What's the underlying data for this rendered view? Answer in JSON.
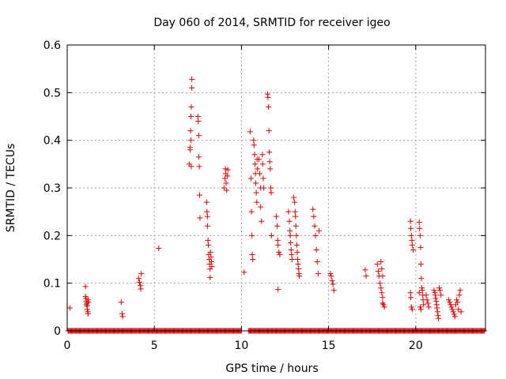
{
  "chart_data": {
    "type": "scatter",
    "title": "Day 060 of 2014, SRMTID for receiver igeo",
    "xlabel": "GPS time / hours",
    "ylabel": "SRMTID / TECUs",
    "xlim": [
      0,
      24
    ],
    "ylim": [
      0,
      0.6
    ],
    "grid": true,
    "legend": "none",
    "marker": "+",
    "color": "#dd0000",
    "xticks": [
      {
        "v": 0,
        "label": "0"
      },
      {
        "v": 5,
        "label": "5"
      },
      {
        "v": 10,
        "label": "10"
      },
      {
        "v": 15,
        "label": "15"
      },
      {
        "v": 20,
        "label": "20"
      }
    ],
    "yticks": [
      {
        "v": 0,
        "label": "0"
      },
      {
        "v": 0.1,
        "label": "0.1"
      },
      {
        "v": 0.2,
        "label": "0.2"
      },
      {
        "v": 0.3,
        "label": "0.3"
      },
      {
        "v": 0.4,
        "label": "0.4"
      },
      {
        "v": 0.5,
        "label": "0.5"
      },
      {
        "v": 0.6,
        "label": "0.6"
      }
    ],
    "points": [
      [
        0.15,
        0.048
      ],
      [
        1.05,
        0.093
      ],
      [
        1.05,
        0.072
      ],
      [
        1.08,
        0.068
      ],
      [
        1.1,
        0.062
      ],
      [
        1.12,
        0.058
      ],
      [
        1.15,
        0.052
      ],
      [
        1.15,
        0.045
      ],
      [
        1.18,
        0.04
      ],
      [
        1.2,
        0.036
      ],
      [
        1.1,
        0.055
      ],
      [
        1.2,
        0.065
      ],
      [
        1.22,
        0.06
      ],
      [
        3.1,
        0.06
      ],
      [
        3.15,
        0.036
      ],
      [
        3.18,
        0.03
      ],
      [
        4.1,
        0.11
      ],
      [
        4.15,
        0.102
      ],
      [
        4.2,
        0.095
      ],
      [
        4.22,
        0.088
      ],
      [
        4.25,
        0.12
      ],
      [
        5.25,
        0.173
      ],
      [
        7.0,
        0.35
      ],
      [
        7.05,
        0.38
      ],
      [
        7.08,
        0.42
      ],
      [
        7.1,
        0.45
      ],
      [
        7.12,
        0.47
      ],
      [
        7.15,
        0.51
      ],
      [
        7.15,
        0.528
      ],
      [
        7.1,
        0.4
      ],
      [
        7.12,
        0.345
      ],
      [
        7.05,
        0.385
      ],
      [
        7.5,
        0.45
      ],
      [
        7.52,
        0.44
      ],
      [
        7.55,
        0.41
      ],
      [
        7.55,
        0.365
      ],
      [
        7.58,
        0.345
      ],
      [
        7.6,
        0.285
      ],
      [
        7.62,
        0.237
      ],
      [
        8.0,
        0.27
      ],
      [
        8.02,
        0.25
      ],
      [
        8.05,
        0.24
      ],
      [
        8.05,
        0.22
      ],
      [
        8.08,
        0.19
      ],
      [
        8.1,
        0.18
      ],
      [
        8.12,
        0.16
      ],
      [
        8.15,
        0.15
      ],
      [
        8.18,
        0.14
      ],
      [
        8.2,
        0.13
      ],
      [
        8.2,
        0.112
      ],
      [
        8.22,
        0.165
      ],
      [
        8.25,
        0.155
      ],
      [
        8.28,
        0.145
      ],
      [
        8.3,
        0.135
      ],
      [
        9.0,
        0.3
      ],
      [
        9.05,
        0.32
      ],
      [
        9.08,
        0.34
      ],
      [
        9.1,
        0.33
      ],
      [
        9.12,
        0.31
      ],
      [
        9.15,
        0.295
      ],
      [
        9.2,
        0.325
      ],
      [
        9.22,
        0.338
      ],
      [
        10.15,
        0.123
      ],
      [
        10.5,
        0.418
      ],
      [
        10.55,
        0.32
      ],
      [
        10.58,
        0.25
      ],
      [
        10.6,
        0.2
      ],
      [
        10.62,
        0.16
      ],
      [
        10.65,
        0.15
      ],
      [
        10.7,
        0.4
      ],
      [
        10.72,
        0.39
      ],
      [
        10.75,
        0.37
      ],
      [
        10.78,
        0.35
      ],
      [
        10.8,
        0.33
      ],
      [
        10.82,
        0.31
      ],
      [
        10.85,
        0.29
      ],
      [
        10.88,
        0.27
      ],
      [
        10.9,
        0.36
      ],
      [
        10.92,
        0.34
      ],
      [
        11.0,
        0.36
      ],
      [
        11.05,
        0.33
      ],
      [
        11.1,
        0.3
      ],
      [
        11.1,
        0.26
      ],
      [
        11.15,
        0.23
      ],
      [
        11.2,
        0.37
      ],
      [
        11.22,
        0.35
      ],
      [
        11.25,
        0.32
      ],
      [
        11.28,
        0.3
      ],
      [
        11.5,
        0.497
      ],
      [
        11.52,
        0.49
      ],
      [
        11.55,
        0.47
      ],
      [
        11.58,
        0.42
      ],
      [
        11.6,
        0.375
      ],
      [
        11.62,
        0.355
      ],
      [
        11.65,
        0.34
      ],
      [
        11.68,
        0.3
      ],
      [
        11.7,
        0.29
      ],
      [
        11.72,
        0.2
      ],
      [
        12.0,
        0.24
      ],
      [
        12.05,
        0.22
      ],
      [
        12.08,
        0.19
      ],
      [
        12.1,
        0.18
      ],
      [
        12.15,
        0.165
      ],
      [
        12.2,
        0.16
      ],
      [
        12.1,
        0.087
      ],
      [
        12.7,
        0.25
      ],
      [
        12.75,
        0.23
      ],
      [
        12.78,
        0.21
      ],
      [
        12.8,
        0.2
      ],
      [
        12.82,
        0.185
      ],
      [
        12.85,
        0.17
      ],
      [
        12.88,
        0.16
      ],
      [
        12.9,
        0.15
      ],
      [
        13.0,
        0.28
      ],
      [
        13.05,
        0.27
      ],
      [
        13.08,
        0.25
      ],
      [
        13.1,
        0.24
      ],
      [
        13.12,
        0.22
      ],
      [
        13.15,
        0.2
      ],
      [
        13.18,
        0.18
      ],
      [
        13.2,
        0.165
      ],
      [
        13.22,
        0.15
      ],
      [
        13.25,
        0.14
      ],
      [
        13.28,
        0.13
      ],
      [
        13.3,
        0.12
      ],
      [
        13.32,
        0.115
      ],
      [
        14.1,
        0.255
      ],
      [
        14.15,
        0.24
      ],
      [
        14.2,
        0.22
      ],
      [
        14.25,
        0.2
      ],
      [
        14.3,
        0.17
      ],
      [
        14.35,
        0.145
      ],
      [
        14.4,
        0.12
      ],
      [
        14.45,
        0.21
      ],
      [
        15.1,
        0.12
      ],
      [
        15.15,
        0.115
      ],
      [
        15.2,
        0.105
      ],
      [
        15.25,
        0.098
      ],
      [
        15.3,
        0.085
      ],
      [
        17.1,
        0.128
      ],
      [
        17.15,
        0.115
      ],
      [
        17.8,
        0.14
      ],
      [
        17.85,
        0.125
      ],
      [
        17.9,
        0.115
      ],
      [
        17.95,
        0.1
      ],
      [
        18.0,
        0.09
      ],
      [
        18.05,
        0.08
      ],
      [
        18.1,
        0.07
      ],
      [
        18.1,
        0.058
      ],
      [
        18.0,
        0.145
      ],
      [
        18.05,
        0.13
      ],
      [
        18.1,
        0.115
      ],
      [
        18.15,
        0.055
      ],
      [
        18.2,
        0.05
      ],
      [
        19.7,
        0.23
      ],
      [
        19.72,
        0.215
      ],
      [
        19.75,
        0.2
      ],
      [
        19.78,
        0.19
      ],
      [
        19.8,
        0.18
      ],
      [
        19.85,
        0.17
      ],
      [
        19.7,
        0.08
      ],
      [
        19.72,
        0.07
      ],
      [
        19.75,
        0.05
      ],
      [
        19.8,
        0.045
      ],
      [
        20.2,
        0.228
      ],
      [
        20.22,
        0.215
      ],
      [
        20.25,
        0.2
      ],
      [
        20.28,
        0.175
      ],
      [
        20.3,
        0.14
      ],
      [
        20.32,
        0.11
      ],
      [
        20.35,
        0.09
      ],
      [
        20.38,
        0.085
      ],
      [
        20.4,
        0.075
      ],
      [
        20.42,
        0.065
      ],
      [
        20.45,
        0.055
      ],
      [
        20.2,
        0.08
      ],
      [
        20.25,
        0.05
      ],
      [
        20.3,
        0.045
      ],
      [
        20.6,
        0.075
      ],
      [
        20.65,
        0.065
      ],
      [
        20.7,
        0.058
      ],
      [
        20.75,
        0.05
      ],
      [
        21.05,
        0.085
      ],
      [
        21.1,
        0.08
      ],
      [
        21.12,
        0.075
      ],
      [
        21.15,
        0.068
      ],
      [
        21.18,
        0.062
      ],
      [
        21.2,
        0.055
      ],
      [
        21.22,
        0.048
      ],
      [
        21.25,
        0.04
      ],
      [
        21.28,
        0.032
      ],
      [
        21.3,
        0.026
      ],
      [
        21.35,
        0.09
      ],
      [
        21.4,
        0.085
      ],
      [
        21.45,
        0.075
      ],
      [
        21.9,
        0.065
      ],
      [
        21.95,
        0.06
      ],
      [
        22.0,
        0.055
      ],
      [
        22.05,
        0.05
      ],
      [
        22.1,
        0.045
      ],
      [
        22.15,
        0.04
      ],
      [
        22.2,
        0.035
      ],
      [
        22.25,
        0.03
      ],
      [
        22.3,
        0.055
      ],
      [
        22.35,
        0.065
      ],
      [
        22.4,
        0.06
      ],
      [
        22.45,
        0.045
      ],
      [
        22.5,
        0.075
      ],
      [
        22.55,
        0.085
      ],
      [
        22.6,
        0.04
      ]
    ],
    "zero_runs": [
      [
        0.05,
        10.0
      ],
      [
        10.4,
        24.0
      ]
    ]
  }
}
